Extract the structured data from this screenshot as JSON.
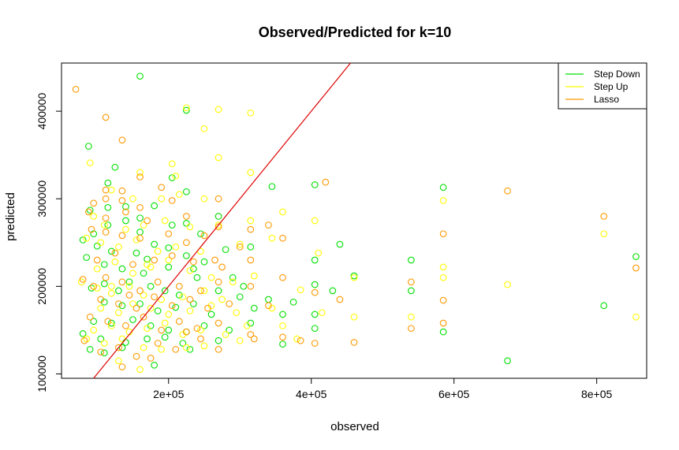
{
  "chart_data": {
    "type": "scatter",
    "title": "Observed/Predicted for k=10",
    "xlabel": "observed",
    "ylabel": "predicted",
    "xlim": [
      50000,
      870000
    ],
    "ylim": [
      95000,
      455000
    ],
    "x_ticks": [
      200000,
      400000,
      600000,
      800000
    ],
    "x_tick_labels": [
      "2e+05",
      "4e+05",
      "6e+05",
      "8e+05"
    ],
    "y_ticks": [
      100000,
      200000,
      300000,
      400000
    ],
    "y_tick_labels": [
      "100000",
      "200000",
      "300000",
      "400000"
    ],
    "grid": false,
    "legend_position": "top-right",
    "reference_line": {
      "type": "identity",
      "color": "#e00000"
    },
    "series": [
      {
        "name": "Step Down",
        "color": "#00e000",
        "points": [
          [
            160000,
            440000
          ],
          [
            225000,
            401000
          ],
          [
            88000,
            360000
          ],
          [
            125000,
            336000
          ],
          [
            115000,
            318000
          ],
          [
            205000,
            324000
          ],
          [
            225000,
            308000
          ],
          [
            345000,
            314000
          ],
          [
            405000,
            316000
          ],
          [
            585000,
            313000
          ],
          [
            90000,
            287000
          ],
          [
            115000,
            290000
          ],
          [
            140000,
            291000
          ],
          [
            160000,
            278000
          ],
          [
            180000,
            292000
          ],
          [
            270000,
            280000
          ],
          [
            80000,
            253000
          ],
          [
            95000,
            260000
          ],
          [
            115000,
            270000
          ],
          [
            140000,
            275000
          ],
          [
            160000,
            262000
          ],
          [
            205000,
            270000
          ],
          [
            225000,
            272000
          ],
          [
            245000,
            260000
          ],
          [
            85000,
            233000
          ],
          [
            100000,
            246000
          ],
          [
            120000,
            240000
          ],
          [
            155000,
            238000
          ],
          [
            170000,
            231000
          ],
          [
            180000,
            248000
          ],
          [
            200000,
            244000
          ],
          [
            225000,
            235000
          ],
          [
            250000,
            228000
          ],
          [
            280000,
            242000
          ],
          [
            315000,
            245000
          ],
          [
            440000,
            248000
          ],
          [
            405000,
            230000
          ],
          [
            540000,
            230000
          ],
          [
            855000,
            234000
          ],
          [
            110000,
            225000
          ],
          [
            135000,
            220000
          ],
          [
            165000,
            215000
          ],
          [
            200000,
            222000
          ],
          [
            235000,
            220000
          ],
          [
            290000,
            210000
          ],
          [
            305000,
            200000
          ],
          [
            405000,
            202000
          ],
          [
            460000,
            212000
          ],
          [
            92000,
            198000
          ],
          [
            110000,
            203000
          ],
          [
            130000,
            195000
          ],
          [
            145000,
            205000
          ],
          [
            175000,
            200000
          ],
          [
            195000,
            195000
          ],
          [
            215000,
            190000
          ],
          [
            240000,
            210000
          ],
          [
            270000,
            195000
          ],
          [
            300000,
            188000
          ],
          [
            340000,
            185000
          ],
          [
            375000,
            182000
          ],
          [
            430000,
            195000
          ],
          [
            540000,
            195000
          ],
          [
            110000,
            182000
          ],
          [
            135000,
            178000
          ],
          [
            160000,
            180000
          ],
          [
            185000,
            172000
          ],
          [
            210000,
            176000
          ],
          [
            235000,
            180000
          ],
          [
            260000,
            168000
          ],
          [
            320000,
            175000
          ],
          [
            405000,
            168000
          ],
          [
            360000,
            168000
          ],
          [
            810000,
            178000
          ],
          [
            95000,
            160000
          ],
          [
            120000,
            158000
          ],
          [
            150000,
            162000
          ],
          [
            175000,
            155000
          ],
          [
            200000,
            150000
          ],
          [
            225000,
            148000
          ],
          [
            250000,
            155000
          ],
          [
            285000,
            150000
          ],
          [
            315000,
            158000
          ],
          [
            405000,
            152000
          ],
          [
            585000,
            148000
          ],
          [
            80000,
            146000
          ],
          [
            105000,
            140000
          ],
          [
            140000,
            136000
          ],
          [
            170000,
            140000
          ],
          [
            195000,
            142000
          ],
          [
            220000,
            135000
          ],
          [
            270000,
            138000
          ],
          [
            360000,
            134000
          ],
          [
            90000,
            128000
          ],
          [
            110000,
            124000
          ],
          [
            135000,
            130000
          ],
          [
            180000,
            110000
          ],
          [
            230000,
            128000
          ],
          [
            675000,
            115000
          ]
        ]
      },
      {
        "name": "Step Up",
        "color": "#ffff00",
        "points": [
          [
            225000,
            404000
          ],
          [
            270000,
            402000
          ],
          [
            315000,
            398000
          ],
          [
            250000,
            380000
          ],
          [
            90000,
            341000
          ],
          [
            270000,
            347000
          ],
          [
            160000,
            330000
          ],
          [
            205000,
            340000
          ],
          [
            315000,
            330000
          ],
          [
            210000,
            326000
          ],
          [
            120000,
            310000
          ],
          [
            150000,
            300000
          ],
          [
            190000,
            300000
          ],
          [
            215000,
            305000
          ],
          [
            250000,
            300000
          ],
          [
            360000,
            285000
          ],
          [
            405000,
            275000
          ],
          [
            585000,
            298000
          ],
          [
            95000,
            280000
          ],
          [
            110000,
            270000
          ],
          [
            140000,
            265000
          ],
          [
            165000,
            270000
          ],
          [
            195000,
            275000
          ],
          [
            230000,
            268000
          ],
          [
            270000,
            270000
          ],
          [
            315000,
            275000
          ],
          [
            810000,
            260000
          ],
          [
            85000,
            255000
          ],
          [
            105000,
            250000
          ],
          [
            130000,
            245000
          ],
          [
            155000,
            253000
          ],
          [
            185000,
            240000
          ],
          [
            210000,
            245000
          ],
          [
            245000,
            240000
          ],
          [
            300000,
            248000
          ],
          [
            345000,
            255000
          ],
          [
            410000,
            238000
          ],
          [
            585000,
            222000
          ],
          [
            585000,
            210000
          ],
          [
            100000,
            220000
          ],
          [
            125000,
            228000
          ],
          [
            150000,
            215000
          ],
          [
            175000,
            222000
          ],
          [
            200000,
            230000
          ],
          [
            230000,
            218000
          ],
          [
            260000,
            210000
          ],
          [
            290000,
            205000
          ],
          [
            320000,
            212000
          ],
          [
            78000,
            205000
          ],
          [
            100000,
            198000
          ],
          [
            120000,
            192000
          ],
          [
            145000,
            200000
          ],
          [
            165000,
            190000
          ],
          [
            190000,
            185000
          ],
          [
            220000,
            188000
          ],
          [
            250000,
            195000
          ],
          [
            275000,
            185000
          ],
          [
            385000,
            196000
          ],
          [
            460000,
            210000
          ],
          [
            675000,
            202000
          ],
          [
            105000,
            175000
          ],
          [
            130000,
            170000
          ],
          [
            150000,
            180000
          ],
          [
            175000,
            175000
          ],
          [
            200000,
            168000
          ],
          [
            230000,
            172000
          ],
          [
            260000,
            178000
          ],
          [
            295000,
            170000
          ],
          [
            345000,
            175000
          ],
          [
            415000,
            170000
          ],
          [
            540000,
            165000
          ],
          [
            855000,
            165000
          ],
          [
            95000,
            150000
          ],
          [
            120000,
            155000
          ],
          [
            145000,
            148000
          ],
          [
            170000,
            152000
          ],
          [
            195000,
            158000
          ],
          [
            220000,
            145000
          ],
          [
            245000,
            150000
          ],
          [
            280000,
            145000
          ],
          [
            310000,
            155000
          ],
          [
            360000,
            155000
          ],
          [
            460000,
            165000
          ],
          [
            85000,
            140000
          ],
          [
            110000,
            135000
          ],
          [
            135000,
            140000
          ],
          [
            165000,
            130000
          ],
          [
            190000,
            128000
          ],
          [
            225000,
            130000
          ],
          [
            250000,
            132000
          ],
          [
            300000,
            138000
          ],
          [
            380000,
            140000
          ],
          [
            130000,
            115000
          ],
          [
            160000,
            105000
          ],
          [
            120000,
            200000
          ],
          [
            170000,
            225000
          ]
        ]
      },
      {
        "name": "Lasso",
        "color": "#ff9900",
        "points": [
          [
            70000,
            425000
          ],
          [
            112000,
            393000
          ],
          [
            135000,
            367000
          ],
          [
            160000,
            325000
          ],
          [
            112000,
            310000
          ],
          [
            135000,
            309000
          ],
          [
            190000,
            313000
          ],
          [
            95000,
            295000
          ],
          [
            112000,
            300000
          ],
          [
            135000,
            298000
          ],
          [
            160000,
            290000
          ],
          [
            205000,
            298000
          ],
          [
            270000,
            300000
          ],
          [
            420000,
            319000
          ],
          [
            675000,
            309000
          ],
          [
            88000,
            285000
          ],
          [
            112000,
            278000
          ],
          [
            140000,
            285000
          ],
          [
            170000,
            275000
          ],
          [
            225000,
            280000
          ],
          [
            270000,
            268000
          ],
          [
            315000,
            265000
          ],
          [
            340000,
            270000
          ],
          [
            810000,
            280000
          ],
          [
            92000,
            265000
          ],
          [
            112000,
            262000
          ],
          [
            135000,
            258000
          ],
          [
            160000,
            255000
          ],
          [
            200000,
            260000
          ],
          [
            225000,
            250000
          ],
          [
            250000,
            258000
          ],
          [
            300000,
            245000
          ],
          [
            360000,
            255000
          ],
          [
            585000,
            260000
          ],
          [
            100000,
            230000
          ],
          [
            125000,
            238000
          ],
          [
            150000,
            225000
          ],
          [
            180000,
            230000
          ],
          [
            205000,
            235000
          ],
          [
            235000,
            228000
          ],
          [
            275000,
            222000
          ],
          [
            315000,
            230000
          ],
          [
            855000,
            221000
          ],
          [
            80000,
            208000
          ],
          [
            95000,
            200000
          ],
          [
            112000,
            210000
          ],
          [
            135000,
            205000
          ],
          [
            160000,
            195000
          ],
          [
            185000,
            205000
          ],
          [
            215000,
            200000
          ],
          [
            245000,
            195000
          ],
          [
            270000,
            205000
          ],
          [
            315000,
            200000
          ],
          [
            360000,
            210000
          ],
          [
            405000,
            193000
          ],
          [
            540000,
            205000
          ],
          [
            105000,
            185000
          ],
          [
            130000,
            180000
          ],
          [
            155000,
            175000
          ],
          [
            180000,
            188000
          ],
          [
            205000,
            178000
          ],
          [
            230000,
            185000
          ],
          [
            255000,
            175000
          ],
          [
            285000,
            180000
          ],
          [
            340000,
            178000
          ],
          [
            440000,
            185000
          ],
          [
            585000,
            184000
          ],
          [
            90000,
            165000
          ],
          [
            115000,
            160000
          ],
          [
            140000,
            155000
          ],
          [
            165000,
            165000
          ],
          [
            190000,
            150000
          ],
          [
            215000,
            160000
          ],
          [
            240000,
            152000
          ],
          [
            270000,
            158000
          ],
          [
            315000,
            145000
          ],
          [
            360000,
            142000
          ],
          [
            540000,
            152000
          ],
          [
            585000,
            158000
          ],
          [
            82000,
            138000
          ],
          [
            105000,
            125000
          ],
          [
            130000,
            130000
          ],
          [
            155000,
            120000
          ],
          [
            185000,
            135000
          ],
          [
            210000,
            128000
          ],
          [
            245000,
            140000
          ],
          [
            270000,
            128000
          ],
          [
            320000,
            140000
          ],
          [
            385000,
            138000
          ],
          [
            405000,
            135000
          ],
          [
            460000,
            136000
          ],
          [
            135000,
            108000
          ],
          [
            175000,
            118000
          ],
          [
            225000,
            148000
          ],
          [
            145000,
            190000
          ],
          [
            265000,
            230000
          ]
        ]
      }
    ]
  }
}
